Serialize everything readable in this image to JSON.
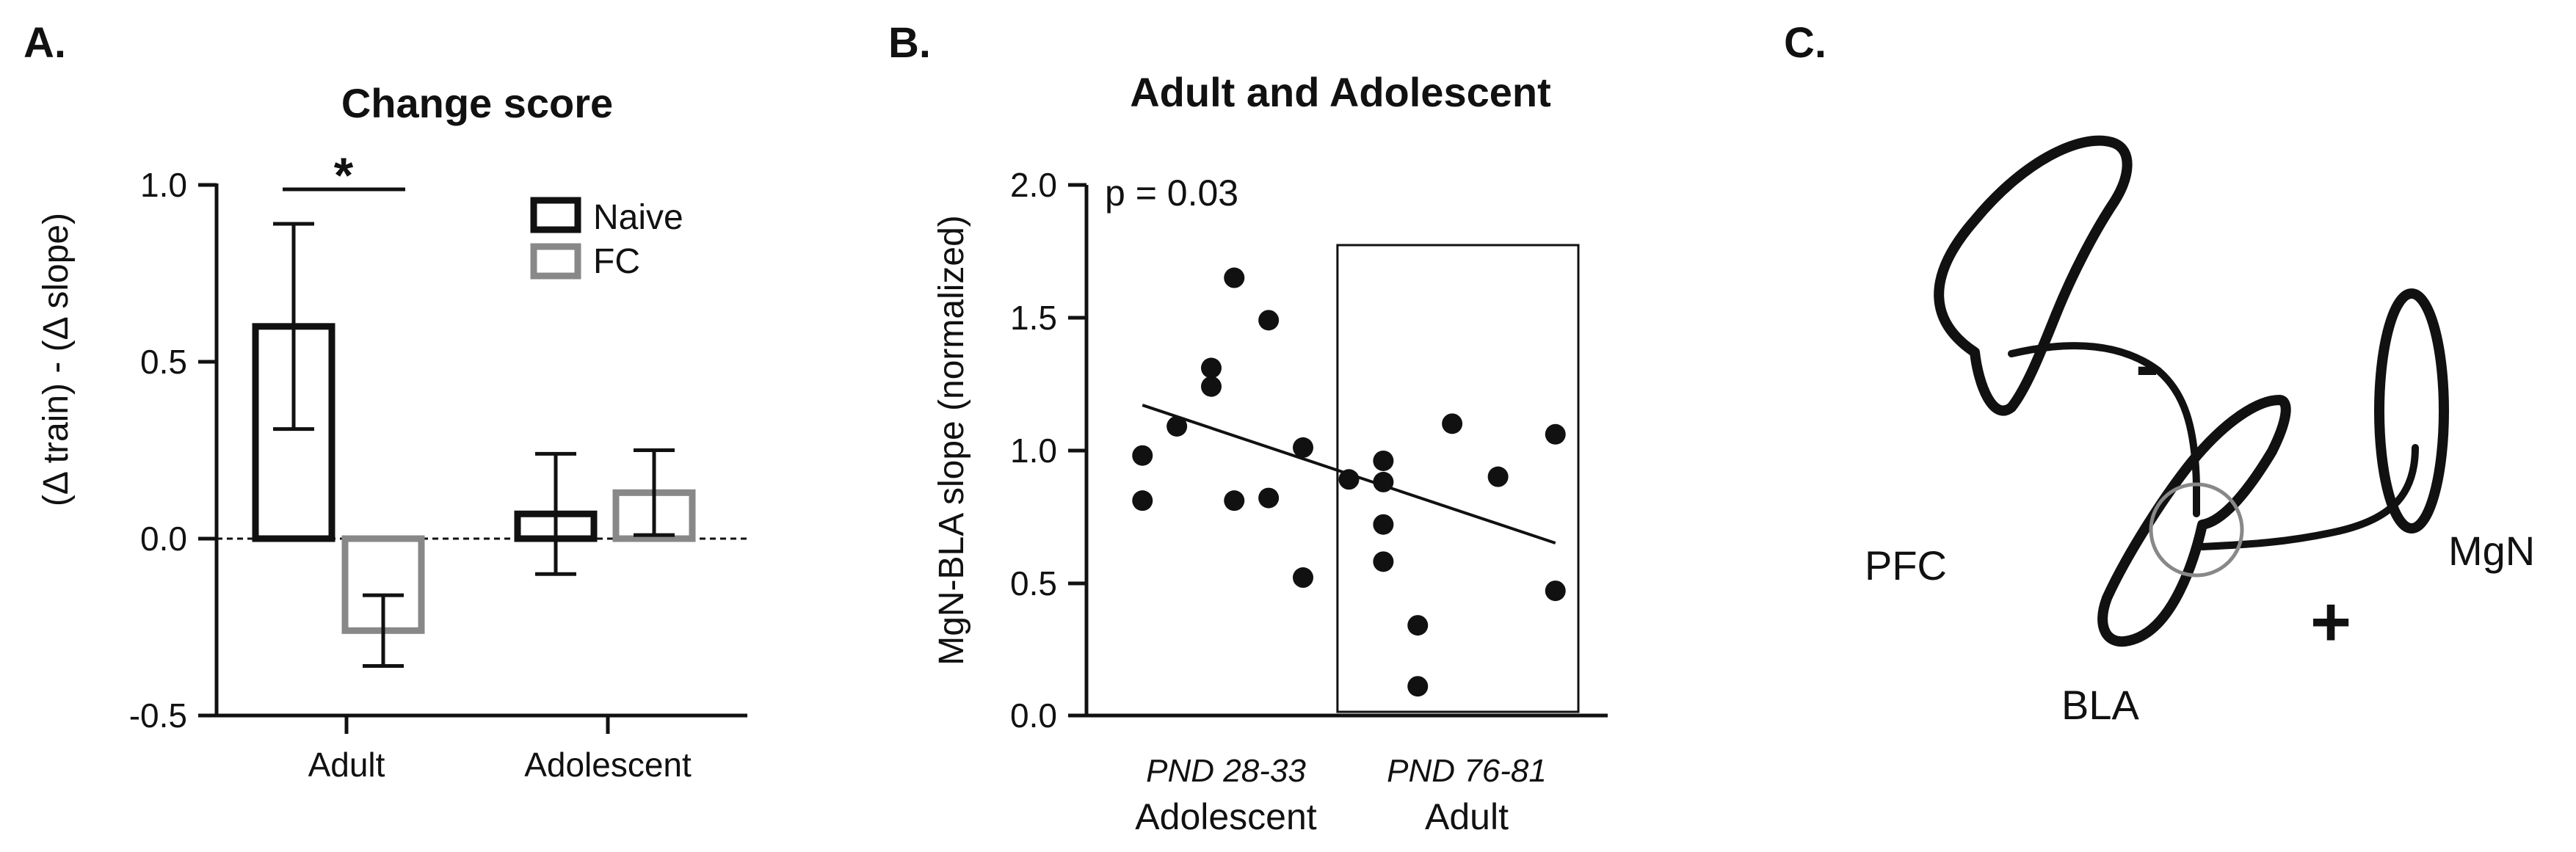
{
  "panel_letters": {
    "a": "A.",
    "b": "B.",
    "c": "C."
  },
  "chart_data": [
    {
      "type": "bar",
      "title": "Change score",
      "xlabel": "",
      "ylabel": "(Δ train) - (Δ slope)",
      "ylim": [
        -0.5,
        1.0
      ],
      "yticks": [
        "1.0",
        "0.5",
        "0.0",
        "-0.5"
      ],
      "categories": [
        "Adult",
        "Adolescent"
      ],
      "series": [
        {
          "name": "Naive",
          "color": "#111111",
          "values": [
            0.6,
            0.07
          ],
          "error": [
            0.29,
            0.17
          ]
        },
        {
          "name": "FC",
          "color": "#888888",
          "values": [
            -0.26,
            0.13
          ],
          "error": [
            0.1,
            0.12
          ]
        }
      ],
      "significance": {
        "label": "*",
        "between": "Adult Naive vs Adult FC"
      },
      "legend": {
        "position": "top-right"
      }
    },
    {
      "type": "scatter",
      "title": "Adult and Adolescent",
      "ylabel": "MgN-BLA slope (normalized)",
      "ylim": [
        0.0,
        2.0
      ],
      "yticks": [
        "2.0",
        "1.5",
        "1.0",
        "0.5",
        "0.0"
      ],
      "xlim": [
        0,
        20
      ],
      "annotation": "p = 0.03",
      "groups": [
        {
          "sub": "PND 28-33",
          "name": "Adolescent"
        },
        {
          "sub": "PND 76-81",
          "name": "Adult"
        }
      ],
      "adult_box_x_range": [
        9.5,
        20
      ],
      "points": [
        {
          "x": 1,
          "y": 0.98
        },
        {
          "x": 1,
          "y": 0.81
        },
        {
          "x": 2.5,
          "y": 1.09
        },
        {
          "x": 4,
          "y": 1.31
        },
        {
          "x": 4,
          "y": 1.24
        },
        {
          "x": 5,
          "y": 1.65
        },
        {
          "x": 5,
          "y": 0.81
        },
        {
          "x": 6.5,
          "y": 1.49
        },
        {
          "x": 6.5,
          "y": 0.82
        },
        {
          "x": 8,
          "y": 1.01
        },
        {
          "x": 8,
          "y": 0.52
        },
        {
          "x": 10,
          "y": 0.89
        },
        {
          "x": 11.5,
          "y": 0.96
        },
        {
          "x": 11.5,
          "y": 0.88
        },
        {
          "x": 11.5,
          "y": 0.72
        },
        {
          "x": 11.5,
          "y": 0.58
        },
        {
          "x": 13,
          "y": 0.34
        },
        {
          "x": 13,
          "y": 0.11
        },
        {
          "x": 14.5,
          "y": 1.1
        },
        {
          "x": 16.5,
          "y": 0.9
        },
        {
          "x": 19,
          "y": 1.06
        },
        {
          "x": 19,
          "y": 0.47
        }
      ],
      "trendline": {
        "x": [
          1,
          19
        ],
        "y": [
          1.17,
          0.65
        ]
      }
    }
  ],
  "diagram": {
    "labels": {
      "pfc": "PFC",
      "bla": "BLA",
      "mgn": "MgN"
    },
    "signs": {
      "inhibitory": "-",
      "excitatory": "+"
    }
  }
}
